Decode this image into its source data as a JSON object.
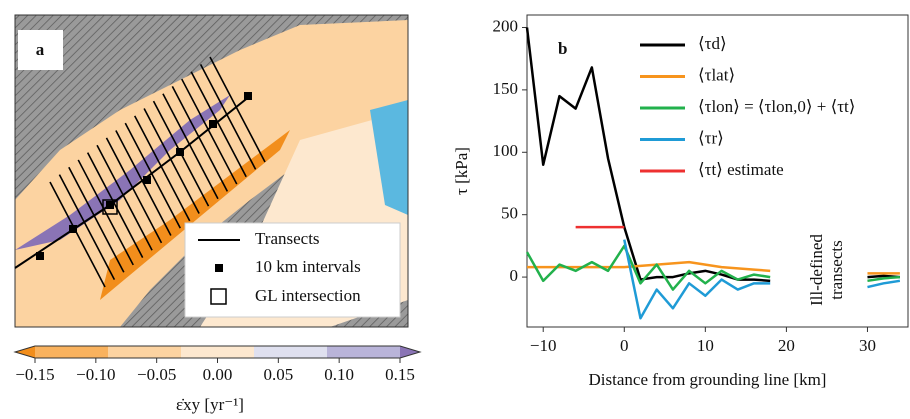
{
  "map": {
    "panel_label": "a",
    "legend": [
      "Transects",
      "10 km intervals",
      "GL intersection"
    ],
    "colorbar": {
      "lim": [
        -0.15,
        0.15
      ],
      "ticks": [
        {
          "value": -0.15,
          "label": "−0.15"
        },
        {
          "value": -0.1,
          "label": "−0.10"
        },
        {
          "value": -0.05,
          "label": "−0.05"
        },
        {
          "value": 0,
          "label": "0.00"
        },
        {
          "value": 0.05,
          "label": "0.05"
        },
        {
          "value": 0.1,
          "label": "0.10"
        },
        {
          "value": 0.15,
          "label": "0.15"
        }
      ],
      "colors": [
        "#f28e1c",
        "#f9b25e",
        "#fcd3a1",
        "#fde8cf",
        "#dfe0ef",
        "#b9b4d9",
        "#8a74b5"
      ],
      "label": "ε̇xy [yr⁻¹]"
    }
  },
  "chart_data": {
    "type": "line",
    "panel_label": "b",
    "xlabel": "Distance from grounding line [km]",
    "ylabel": "τ [kPa]",
    "annotation": [
      "Ill-defined",
      "transects"
    ],
    "xlim": [
      -12,
      35
    ],
    "ylim": [
      -40,
      210
    ],
    "xticks": [
      {
        "value": -10,
        "label": "−10"
      },
      0,
      10,
      20,
      30
    ],
    "yticks": [
      0,
      50,
      100,
      150,
      200
    ],
    "x": [
      -12,
      -10,
      -8,
      -6,
      -4,
      -2,
      0,
      2,
      4,
      6,
      8,
      10,
      12,
      14,
      16,
      18,
      24,
      30,
      32,
      34
    ],
    "series": [
      {
        "name": "⟨τd⟩",
        "color": "#000000",
        "values": [
          200,
          90,
          145,
          135,
          168,
          95,
          40,
          -2,
          0,
          0,
          3,
          5,
          2,
          -2,
          -2,
          -3,
          null,
          0,
          1,
          0
        ]
      },
      {
        "name": "⟨τlat⟩",
        "color": "#f7941d",
        "values": [
          8,
          8,
          8,
          8,
          8,
          8,
          8,
          9,
          10,
          11,
          12,
          10,
          8,
          7,
          6,
          5,
          null,
          3,
          3,
          3
        ]
      },
      {
        "name": "⟨τlon⟩ = ⟨τlon,0⟩ + ⟨τt⟩",
        "color": "#22b14c",
        "values": [
          20,
          -3,
          10,
          5,
          12,
          5,
          25,
          -5,
          10,
          -10,
          5,
          -5,
          5,
          -2,
          2,
          0,
          null,
          -3,
          -1,
          0
        ]
      },
      {
        "name": "⟨τr⟩",
        "color": "#1f9bd6",
        "values": [
          null,
          null,
          null,
          null,
          null,
          null,
          30,
          -33,
          -10,
          -25,
          -5,
          -15,
          -2,
          -10,
          -5,
          -5,
          null,
          -8,
          -5,
          -3
        ]
      },
      {
        "name": "⟨τt⟩ estimate",
        "color": "#ee3030",
        "x": [
          -6,
          0
        ],
        "values": [
          40,
          40
        ]
      }
    ]
  }
}
